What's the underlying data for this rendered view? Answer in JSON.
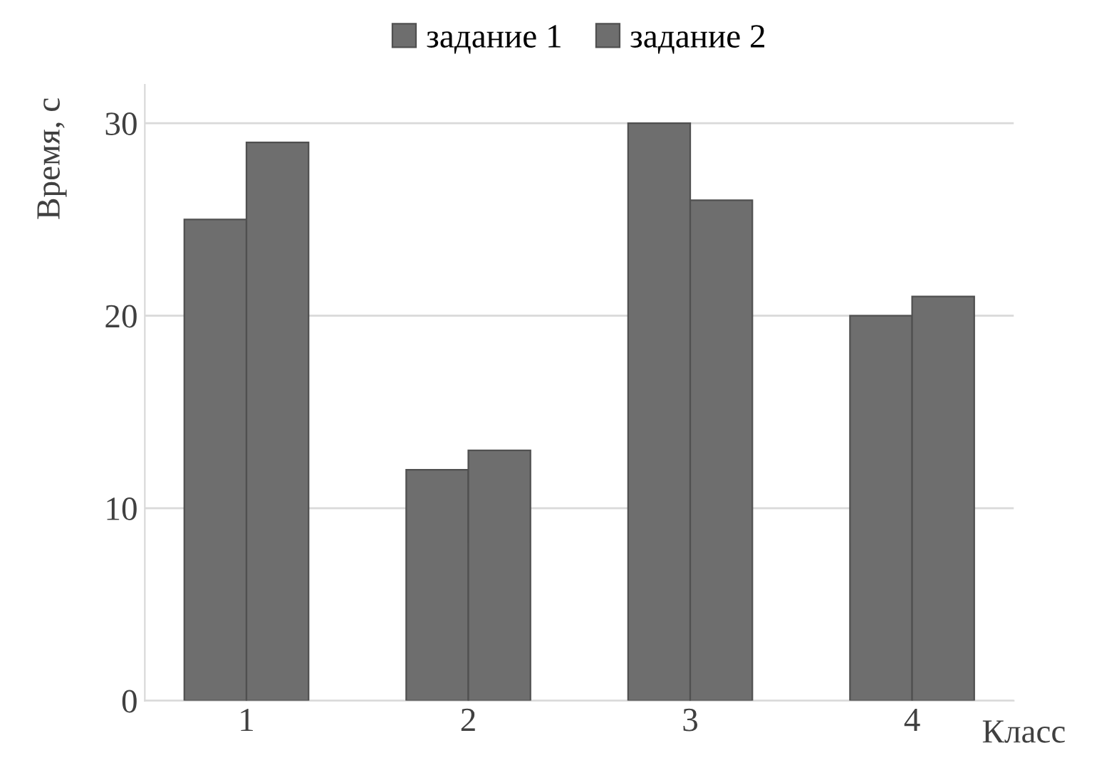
{
  "chart_data": {
    "type": "bar",
    "xlabel": "Класс",
    "ylabel": "Время, с",
    "categories": [
      "1",
      "2",
      "3",
      "4"
    ],
    "series": [
      {
        "name": "задание 1",
        "color": "#6e6e6e",
        "values": [
          25,
          12,
          30,
          20
        ]
      },
      {
        "name": "задание 2",
        "color": "#6e6e6e",
        "values": [
          29,
          13,
          26,
          21
        ]
      }
    ],
    "ylim": [
      0,
      32
    ],
    "yticks": [
      0,
      10,
      20,
      30
    ],
    "grid": "y",
    "legend": "top"
  }
}
